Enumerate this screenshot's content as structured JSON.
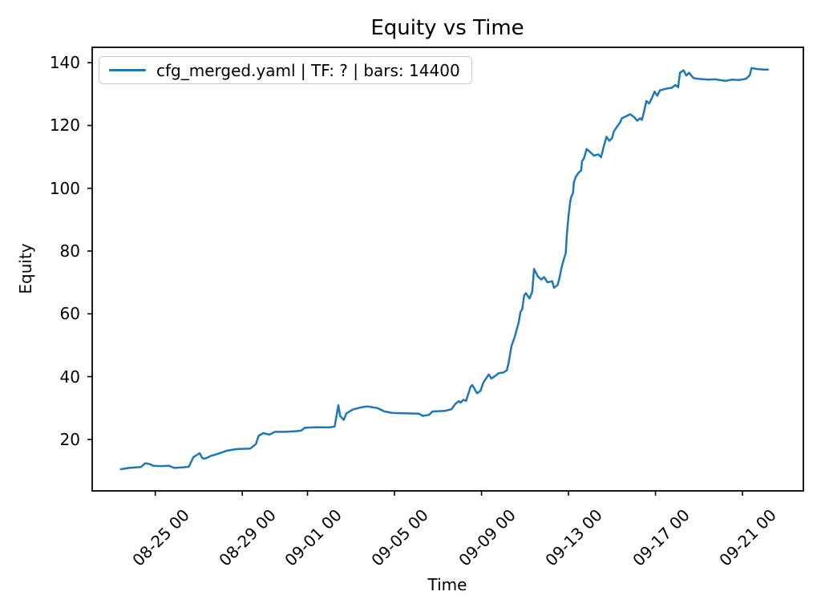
{
  "figure": {
    "title": "Equity vs Time",
    "xlabel": "Time",
    "ylabel": "Equity",
    "background_color": "#ffffff",
    "spine_color": "#000000",
    "legend": {
      "label": "cfg_merged.yaml | TF: ? | bars: 14400",
      "line_color": "#1f77b4",
      "position": "upper left"
    }
  },
  "chart_data": {
    "type": "line",
    "title": "Equity vs Time",
    "xlabel": "Time",
    "ylabel": "Equity",
    "grid": false,
    "legend_position": "upper left",
    "x_epoch": "08-23 00",
    "xlim_days_from_epoch": [
      -0.9,
      31.8
    ],
    "ylim": [
      3.6,
      144.9
    ],
    "y_ticks": [
      20,
      40,
      60,
      80,
      100,
      120,
      140
    ],
    "x_ticks": [
      {
        "label": "08-25 00",
        "day": 2
      },
      {
        "label": "08-29 00",
        "day": 6
      },
      {
        "label": "09-01 00",
        "day": 9
      },
      {
        "label": "09-05 00",
        "day": 13
      },
      {
        "label": "09-09 00",
        "day": 17
      },
      {
        "label": "09-13 00",
        "day": 21
      },
      {
        "label": "09-17 00",
        "day": 25
      },
      {
        "label": "09-21 00",
        "day": 29
      }
    ],
    "series": [
      {
        "name": "cfg_merged.yaml | TF: ? | bars: 14400",
        "color": "#1f77b4",
        "line_width": 2.5,
        "points": [
          [
            "08-23 10",
            10.5
          ],
          [
            "08-23 19",
            10.9
          ],
          [
            "08-24 08",
            11.2
          ],
          [
            "08-24 13",
            12.4
          ],
          [
            "08-24 17",
            12.2
          ],
          [
            "08-24 22",
            11.6
          ],
          [
            "08-25 06",
            11.5
          ],
          [
            "08-25 15",
            11.6
          ],
          [
            "08-25 21",
            10.9
          ],
          [
            "08-26 07",
            11.1
          ],
          [
            "08-26 13",
            11.3
          ],
          [
            "08-26 18",
            14.3
          ],
          [
            "08-27 01",
            15.6
          ],
          [
            "08-27 04",
            14.0
          ],
          [
            "08-27 07",
            13.9
          ],
          [
            "08-27 13",
            14.7
          ],
          [
            "08-27 20",
            15.3
          ],
          [
            "08-28 07",
            16.4
          ],
          [
            "08-28 18",
            16.9
          ],
          [
            "08-29 09",
            17.1
          ],
          [
            "08-29 15",
            18.5
          ],
          [
            "08-29 18",
            21.1
          ],
          [
            "08-29 23",
            22.0
          ],
          [
            "08-30 06",
            21.5
          ],
          [
            "08-30 12",
            22.4
          ],
          [
            "08-30 23",
            22.4
          ],
          [
            "08-31 11",
            22.6
          ],
          [
            "08-31 17",
            22.8
          ],
          [
            "08-31 21",
            23.7
          ],
          [
            "09-01 11",
            23.9
          ],
          [
            "09-02 00",
            23.8
          ],
          [
            "09-02 06",
            24.1
          ],
          [
            "09-02 10",
            30.9
          ],
          [
            "09-02 12",
            27.5
          ],
          [
            "09-02 16",
            26.2
          ],
          [
            "09-02 19",
            28.3
          ],
          [
            "09-03 02",
            29.5
          ],
          [
            "09-03 11",
            30.2
          ],
          [
            "09-03 18",
            30.5
          ],
          [
            "09-04 05",
            30.0
          ],
          [
            "09-04 13",
            28.9
          ],
          [
            "09-04 22",
            28.4
          ],
          [
            "09-05 12",
            28.3
          ],
          [
            "09-06 03",
            28.2
          ],
          [
            "09-06 07",
            27.5
          ],
          [
            "09-06 14",
            27.8
          ],
          [
            "09-06 18",
            28.9
          ],
          [
            "09-07 08",
            29.1
          ],
          [
            "09-07 15",
            29.6
          ],
          [
            "09-07 19",
            31.3
          ],
          [
            "09-07 23",
            32.2
          ],
          [
            "09-08 01",
            31.7
          ],
          [
            "09-08 04",
            32.6
          ],
          [
            "09-08 07",
            32.3
          ],
          [
            "09-08 12",
            36.8
          ],
          [
            "09-08 14",
            37.3
          ],
          [
            "09-08 19",
            34.7
          ],
          [
            "09-08 23",
            35.5
          ],
          [
            "09-09 02",
            38.1
          ],
          [
            "09-09 06",
            39.8
          ],
          [
            "09-09 08",
            40.7
          ],
          [
            "09-09 11",
            39.4
          ],
          [
            "09-09 15",
            40.2
          ],
          [
            "09-09 19",
            41.1
          ],
          [
            "09-10 00",
            41.3
          ],
          [
            "09-10 04",
            42.0
          ],
          [
            "09-10 06",
            44.5
          ],
          [
            "09-10 09",
            49.6
          ],
          [
            "09-10 13",
            53.0
          ],
          [
            "09-10 15",
            55.1
          ],
          [
            "09-10 17",
            57.2
          ],
          [
            "09-10 19",
            60.5
          ],
          [
            "09-10 21",
            61.5
          ],
          [
            "09-10 23",
            65.8
          ],
          [
            "09-11 01",
            66.6
          ],
          [
            "09-11 05",
            64.9
          ],
          [
            "09-11 08",
            67.0
          ],
          [
            "09-11 10",
            74.3
          ],
          [
            "09-11 14",
            72.0
          ],
          [
            "09-11 18",
            70.9
          ],
          [
            "09-11 21",
            71.7
          ],
          [
            "09-12 01",
            70.0
          ],
          [
            "09-12 06",
            70.4
          ],
          [
            "09-12 08",
            68.3
          ],
          [
            "09-12 12",
            69.2
          ],
          [
            "09-12 14",
            71.3
          ],
          [
            "09-12 17",
            75.5
          ],
          [
            "09-12 21",
            79.4
          ],
          [
            "09-12 22",
            84.5
          ],
          [
            "09-13 00",
            91.0
          ],
          [
            "09-13 02",
            95.9
          ],
          [
            "09-13 03",
            97.2
          ],
          [
            "09-13 05",
            98.5
          ],
          [
            "09-13 06",
            101.9
          ],
          [
            "09-13 08",
            103.6
          ],
          [
            "09-13 11",
            104.9
          ],
          [
            "09-13 14",
            105.7
          ],
          [
            "09-13 15",
            108.7
          ],
          [
            "09-13 17",
            109.5
          ],
          [
            "09-13 20",
            112.5
          ],
          [
            "09-14 00",
            111.5
          ],
          [
            "09-14 04",
            110.4
          ],
          [
            "09-14 09",
            110.8
          ],
          [
            "09-14 12",
            109.9
          ],
          [
            "09-14 15",
            113.4
          ],
          [
            "09-14 18",
            116.4
          ],
          [
            "09-14 21",
            115.1
          ],
          [
            "09-15 00",
            115.9
          ],
          [
            "09-15 02",
            118.1
          ],
          [
            "09-15 06",
            119.8
          ],
          [
            "09-15 09",
            121.0
          ],
          [
            "09-15 11",
            122.3
          ],
          [
            "09-15 16",
            123.0
          ],
          [
            "09-15 20",
            123.6
          ],
          [
            "09-16 00",
            122.8
          ],
          [
            "09-16 04",
            121.5
          ],
          [
            "09-16 07",
            122.3
          ],
          [
            "09-16 09",
            121.8
          ],
          [
            "09-16 11",
            124.0
          ],
          [
            "09-16 14",
            127.8
          ],
          [
            "09-16 17",
            127.0
          ],
          [
            "09-16 20",
            128.7
          ],
          [
            "09-16 23",
            130.8
          ],
          [
            "09-17 02",
            129.5
          ],
          [
            "09-17 05",
            131.2
          ],
          [
            "09-17 09",
            131.5
          ],
          [
            "09-17 13",
            131.8
          ],
          [
            "09-17 18",
            132.0
          ],
          [
            "09-17 22",
            132.9
          ],
          [
            "09-18 01",
            132.2
          ],
          [
            "09-18 03",
            136.8
          ],
          [
            "09-18 07",
            137.6
          ],
          [
            "09-18 10",
            135.9
          ],
          [
            "09-18 13",
            136.8
          ],
          [
            "09-18 18",
            135.1
          ],
          [
            "09-19 01",
            134.8
          ],
          [
            "09-19 10",
            134.6
          ],
          [
            "09-19 18",
            134.7
          ],
          [
            "09-20 05",
            134.2
          ],
          [
            "09-20 12",
            134.6
          ],
          [
            "09-20 21",
            134.5
          ],
          [
            "09-21 04",
            134.9
          ],
          [
            "09-21 08",
            136.0
          ],
          [
            "09-21 10",
            138.3
          ],
          [
            "09-21 16",
            138.0
          ],
          [
            "09-21 23",
            137.8
          ],
          [
            "09-22 04",
            137.8
          ]
        ]
      }
    ]
  }
}
